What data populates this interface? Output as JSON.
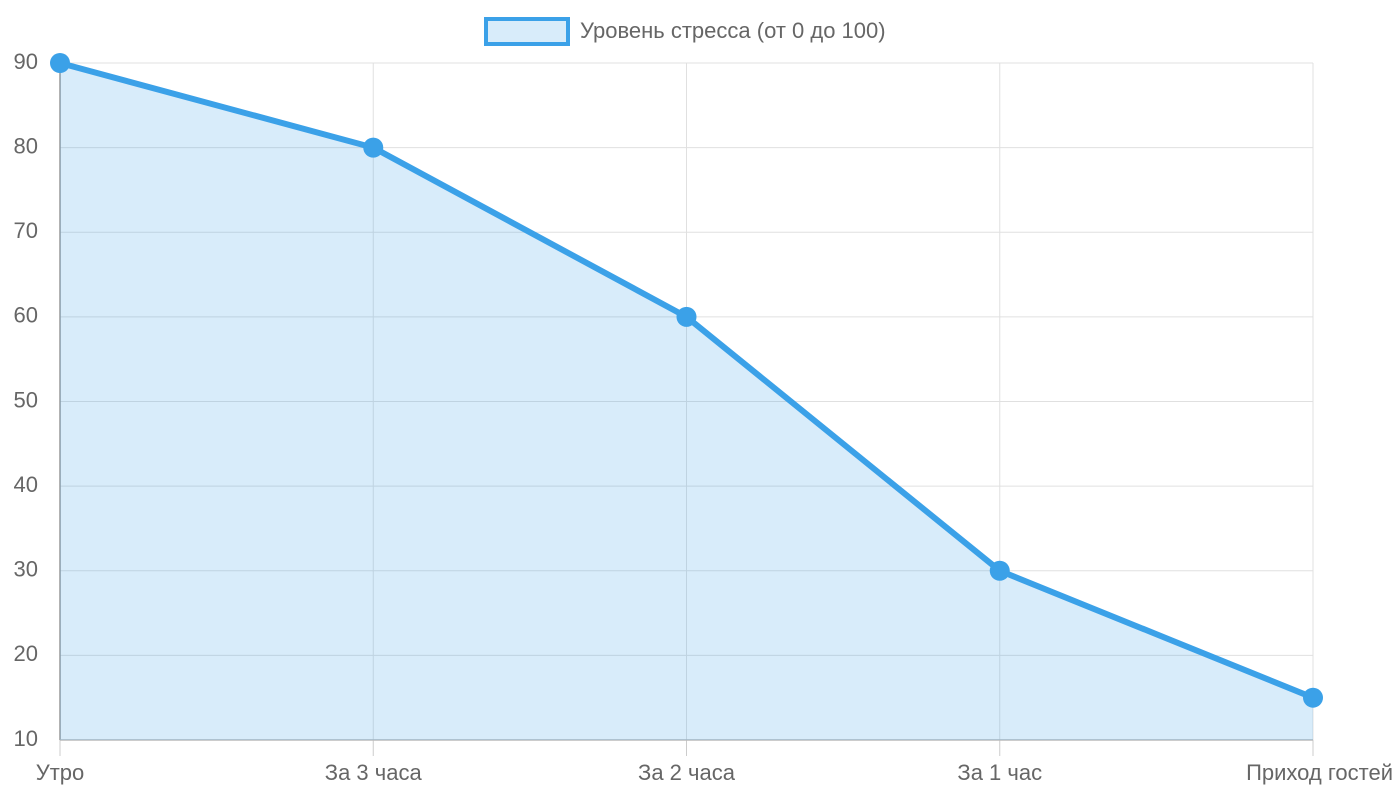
{
  "chart_data": {
    "type": "line",
    "categories": [
      "Утро",
      "За 3 часа",
      "За 2 часа",
      "За 1 час",
      "Приход гостей"
    ],
    "series": [
      {
        "name": "Уровень стресса (от 0 до 100)",
        "color": "#3ba1e8",
        "fill": "rgba(59,161,232,0.2)",
        "values": [
          90,
          80,
          60,
          30,
          15
        ]
      }
    ],
    "ylim": [
      10,
      90
    ],
    "yticks": [
      10,
      20,
      30,
      40,
      50,
      60,
      70,
      80,
      90
    ],
    "grid": true,
    "legend": "top"
  }
}
